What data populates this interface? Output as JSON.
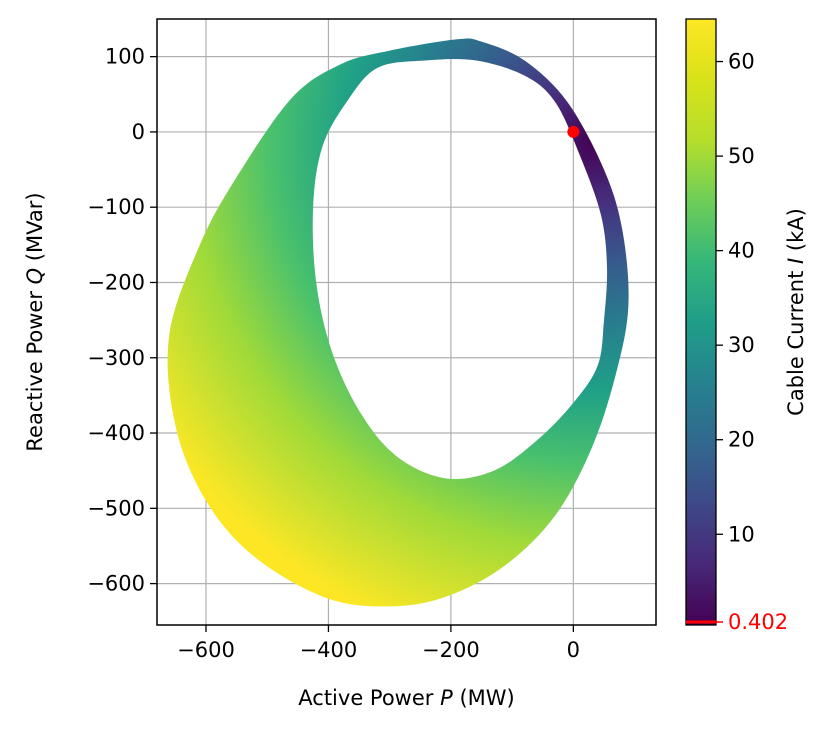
{
  "chart_data": {
    "type": "scatter",
    "title": "",
    "xlabel": "Active Power P (MW)",
    "xlabel_parts": {
      "prefix": "Active Power ",
      "symbol": "P",
      "suffix": " (MW)"
    },
    "ylabel": "Reactive Power Q (MVar)",
    "ylabel_parts": {
      "prefix": "Reactive Power ",
      "symbol": "Q",
      "suffix": " (MVar)"
    },
    "xlim": [
      -680,
      135
    ],
    "ylim": [
      -655,
      150
    ],
    "xticks": [
      -600,
      -400,
      -200,
      0
    ],
    "xtick_labels": [
      "−600",
      "−400",
      "−200",
      "0"
    ],
    "yticks": [
      100,
      0,
      -100,
      -200,
      -300,
      -400,
      -500,
      -600
    ],
    "ytick_labels": [
      "100",
      "0",
      "−100",
      "−200",
      "−300",
      "−400",
      "−500",
      "−600"
    ],
    "grid": true,
    "region": {
      "description_points_outer": [
        [
          -190,
          123
        ],
        [
          -300,
          108
        ],
        [
          -380,
          90
        ],
        [
          -460,
          45
        ],
        [
          -550,
          -60
        ],
        [
          -610,
          -150
        ],
        [
          -660,
          -270
        ],
        [
          -650,
          -390
        ],
        [
          -600,
          -490
        ],
        [
          -520,
          -565
        ],
        [
          -400,
          -620
        ],
        [
          -290,
          -630
        ],
        [
          -200,
          -615
        ],
        [
          -110,
          -575
        ],
        [
          -30,
          -510
        ],
        [
          30,
          -420
        ],
        [
          70,
          -320
        ],
        [
          90,
          -230
        ],
        [
          80,
          -130
        ],
        [
          50,
          -50
        ],
        [
          -10,
          40
        ],
        [
          -80,
          95
        ],
        [
          -150,
          120
        ]
      ],
      "description_points_inner": [
        [
          -320,
          85
        ],
        [
          -370,
          40
        ],
        [
          -410,
          -20
        ],
        [
          -425,
          -100
        ],
        [
          -420,
          -200
        ],
        [
          -395,
          -290
        ],
        [
          -350,
          -370
        ],
        [
          -290,
          -430
        ],
        [
          -210,
          -460
        ],
        [
          -130,
          -450
        ],
        [
          -60,
          -410
        ],
        [
          0,
          -360
        ],
        [
          40,
          -310
        ],
        [
          50,
          -250
        ],
        [
          55,
          -180
        ],
        [
          45,
          -110
        ],
        [
          10,
          -30
        ],
        [
          -30,
          40
        ],
        [
          -80,
          75
        ],
        [
          -160,
          95
        ],
        [
          -240,
          95
        ]
      ]
    },
    "colorbar": {
      "label": "Cable Current I (kA)",
      "label_parts": {
        "prefix": "Cable Current ",
        "symbol": "I",
        "suffix": " (kA)"
      },
      "min": 0.402,
      "max": 64.5,
      "ticks": [
        10,
        20,
        30,
        40,
        50,
        60
      ],
      "tick_labels": [
        "10",
        "20",
        "30",
        "40",
        "50",
        "60"
      ],
      "colormap": "viridis",
      "marker_value": 0.402,
      "marker_label": "0.402",
      "marker_color": "#ff0000"
    },
    "highlight_point": {
      "x": 0,
      "y": 0,
      "color": "#ff0000"
    },
    "colors": {
      "grid": "#b0b0b0",
      "axis": "#000000"
    }
  }
}
